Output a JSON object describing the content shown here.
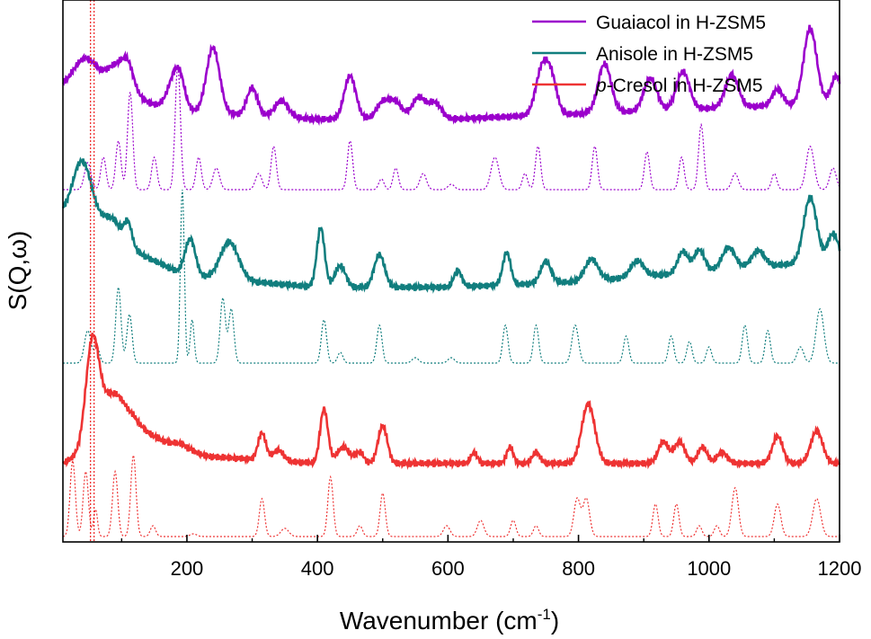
{
  "chart_data": {
    "type": "line",
    "title": "",
    "xlabel": "Wavenumber (cm",
    "xlabel_sup": "-1",
    "xlabel_close": ")",
    "ylabel": "S(Q,ω)",
    "xlim": [
      10,
      1200
    ],
    "x_ticks": [
      200,
      400,
      600,
      800,
      1000,
      1200
    ],
    "y_ticks": [],
    "grid": false,
    "legend_position": "top-right",
    "series": [
      {
        "name": "Guaiacol in H-ZSM5",
        "legend_prefix": "",
        "legend_suffix": "Guaiacol in H-ZSM5",
        "color": "#9b00cc",
        "experimental": {
          "baseline": 0.78,
          "peaks": [
            [
              45,
              0.06,
              18
            ],
            [
              95,
              0.06,
              18
            ],
            [
              110,
              0.03,
              8
            ],
            [
              180,
              0.05,
              10
            ],
            [
              190,
              0.04,
              8
            ],
            [
              240,
              0.12,
              10
            ],
            [
              300,
              0.05,
              8
            ],
            [
              345,
              0.03,
              10
            ],
            [
              450,
              0.08,
              9
            ],
            [
              500,
              0.03,
              10
            ],
            [
              520,
              0.03,
              10
            ],
            [
              555,
              0.04,
              10
            ],
            [
              580,
              0.03,
              10
            ],
            [
              745,
              0.09,
              10
            ],
            [
              760,
              0.05,
              8
            ],
            [
              840,
              0.09,
              10
            ],
            [
              910,
              0.06,
              10
            ],
            [
              960,
              0.07,
              10
            ],
            [
              1035,
              0.06,
              10
            ],
            [
              1105,
              0.03,
              8
            ],
            [
              1155,
              0.14,
              10
            ],
            [
              1195,
              0.05,
              8
            ]
          ],
          "slope": [
            [
              10,
              0.06
            ],
            [
              200,
              0.015
            ],
            [
              400,
              0.0
            ],
            [
              600,
              0.0
            ],
            [
              800,
              0.01
            ],
            [
              1000,
              0.02
            ],
            [
              1200,
              0.03
            ]
          ]
        },
        "calculated": {
          "baseline": 0.65,
          "peaks": [
            [
              48,
              0.05,
              5
            ],
            [
              72,
              0.06,
              4
            ],
            [
              95,
              0.09,
              4
            ],
            [
              113,
              0.18,
              4
            ],
            [
              150,
              0.06,
              4
            ],
            [
              186,
              0.23,
              4
            ],
            [
              218,
              0.06,
              4
            ],
            [
              245,
              0.04,
              5
            ],
            [
              310,
              0.03,
              5
            ],
            [
              333,
              0.08,
              4
            ],
            [
              450,
              0.09,
              4
            ],
            [
              498,
              0.02,
              4
            ],
            [
              520,
              0.04,
              4
            ],
            [
              562,
              0.03,
              5
            ],
            [
              605,
              0.01,
              5
            ],
            [
              672,
              0.06,
              6
            ],
            [
              718,
              0.03,
              4
            ],
            [
              738,
              0.08,
              4
            ],
            [
              825,
              0.08,
              4
            ],
            [
              905,
              0.07,
              4
            ],
            [
              958,
              0.06,
              4
            ],
            [
              988,
              0.12,
              4
            ],
            [
              1040,
              0.03,
              5
            ],
            [
              1100,
              0.03,
              4
            ],
            [
              1155,
              0.08,
              6
            ],
            [
              1190,
              0.04,
              5
            ]
          ]
        }
      },
      {
        "name": "Anisole in H-ZSM5",
        "legend_prefix": "",
        "legend_suffix": "Anisole in H-ZSM5",
        "color": "#117e7e",
        "experimental": {
          "baseline": 0.47,
          "peaks": [
            [
              40,
              0.12,
              15
            ],
            [
              85,
              0.04,
              15
            ],
            [
              110,
              0.04,
              6
            ],
            [
              205,
              0.07,
              8
            ],
            [
              265,
              0.07,
              14
            ],
            [
              405,
              0.11,
              6
            ],
            [
              435,
              0.04,
              8
            ],
            [
              495,
              0.06,
              8
            ],
            [
              615,
              0.03,
              6
            ],
            [
              690,
              0.06,
              6
            ],
            [
              750,
              0.04,
              8
            ],
            [
              820,
              0.04,
              10
            ],
            [
              890,
              0.03,
              10
            ],
            [
              960,
              0.04,
              8
            ],
            [
              985,
              0.04,
              8
            ],
            [
              1030,
              0.04,
              10
            ],
            [
              1075,
              0.03,
              10
            ],
            [
              1155,
              0.12,
              10
            ],
            [
              1190,
              0.05,
              8
            ]
          ],
          "slope": [
            [
              10,
              0.13
            ],
            [
              200,
              0.02
            ],
            [
              400,
              0.0
            ],
            [
              600,
              0.0
            ],
            [
              800,
              0.01
            ],
            [
              1000,
              0.03
            ],
            [
              1200,
              0.05
            ]
          ]
        },
        "calculated": {
          "baseline": 0.33,
          "peaks": [
            [
              48,
              0.06,
              5
            ],
            [
              62,
              0.03,
              4
            ],
            [
              95,
              0.14,
              4
            ],
            [
              112,
              0.09,
              4
            ],
            [
              193,
              0.32,
              3
            ],
            [
              208,
              0.08,
              3
            ],
            [
              255,
              0.12,
              4
            ],
            [
              268,
              0.1,
              4
            ],
            [
              410,
              0.08,
              4
            ],
            [
              435,
              0.02,
              4
            ],
            [
              495,
              0.07,
              4
            ],
            [
              550,
              0.01,
              5
            ],
            [
              605,
              0.01,
              5
            ],
            [
              688,
              0.07,
              4
            ],
            [
              735,
              0.07,
              4
            ],
            [
              795,
              0.07,
              5
            ],
            [
              873,
              0.05,
              4
            ],
            [
              942,
              0.05,
              4
            ],
            [
              970,
              0.04,
              4
            ],
            [
              1000,
              0.03,
              4
            ],
            [
              1055,
              0.07,
              4
            ],
            [
              1090,
              0.06,
              4
            ],
            [
              1140,
              0.03,
              5
            ],
            [
              1170,
              0.1,
              6
            ]
          ]
        }
      },
      {
        "name": "p-Cresol in H-ZSM5",
        "legend_prefix": "p",
        "legend_suffix": "-Cresol in H-ZSM5",
        "color": "#ee3333",
        "experimental": {
          "baseline": 0.145,
          "peaks": [
            [
              55,
              0.18,
              10
            ],
            [
              85,
              0.08,
              20
            ],
            [
              195,
              0.015,
              15
            ],
            [
              315,
              0.05,
              6
            ],
            [
              340,
              0.02,
              8
            ],
            [
              410,
              0.1,
              6
            ],
            [
              440,
              0.03,
              10
            ],
            [
              465,
              0.02,
              6
            ],
            [
              500,
              0.07,
              7
            ],
            [
              640,
              0.02,
              5
            ],
            [
              695,
              0.03,
              5
            ],
            [
              735,
              0.02,
              6
            ],
            [
              815,
              0.11,
              10
            ],
            [
              930,
              0.04,
              8
            ],
            [
              955,
              0.04,
              8
            ],
            [
              990,
              0.03,
              7
            ],
            [
              1020,
              0.02,
              8
            ],
            [
              1105,
              0.05,
              8
            ],
            [
              1165,
              0.06,
              9
            ]
          ],
          "slope": [
            [
              10,
              0.0
            ],
            [
              120,
              0.07
            ],
            [
              200,
              0.015
            ],
            [
              400,
              0.0
            ],
            [
              600,
              0.0
            ],
            [
              800,
              0.0
            ],
            [
              1000,
              0.0
            ],
            [
              1200,
              0.0
            ]
          ]
        },
        "calculated": {
          "baseline": 0.01,
          "peaks": [
            [
              25,
              0.14,
              4
            ],
            [
              45,
              0.12,
              4
            ],
            [
              60,
              0.05,
              3
            ],
            [
              90,
              0.12,
              4
            ],
            [
              118,
              0.15,
              4
            ],
            [
              148,
              0.02,
              4
            ],
            [
              210,
              0.005,
              5
            ],
            [
              315,
              0.07,
              4
            ],
            [
              350,
              0.015,
              6
            ],
            [
              420,
              0.11,
              4
            ],
            [
              465,
              0.02,
              4
            ],
            [
              500,
              0.08,
              4
            ],
            [
              598,
              0.02,
              5
            ],
            [
              650,
              0.03,
              5
            ],
            [
              700,
              0.03,
              4
            ],
            [
              735,
              0.02,
              4
            ],
            [
              798,
              0.07,
              5
            ],
            [
              812,
              0.07,
              5
            ],
            [
              918,
              0.06,
              4
            ],
            [
              950,
              0.06,
              4
            ],
            [
              985,
              0.02,
              4
            ],
            [
              1012,
              0.02,
              4
            ],
            [
              1040,
              0.09,
              5
            ],
            [
              1105,
              0.06,
              5
            ],
            [
              1165,
              0.07,
              6
            ]
          ]
        }
      }
    ],
    "reference_line": {
      "x": 55,
      "color": "#ee2222"
    }
  }
}
